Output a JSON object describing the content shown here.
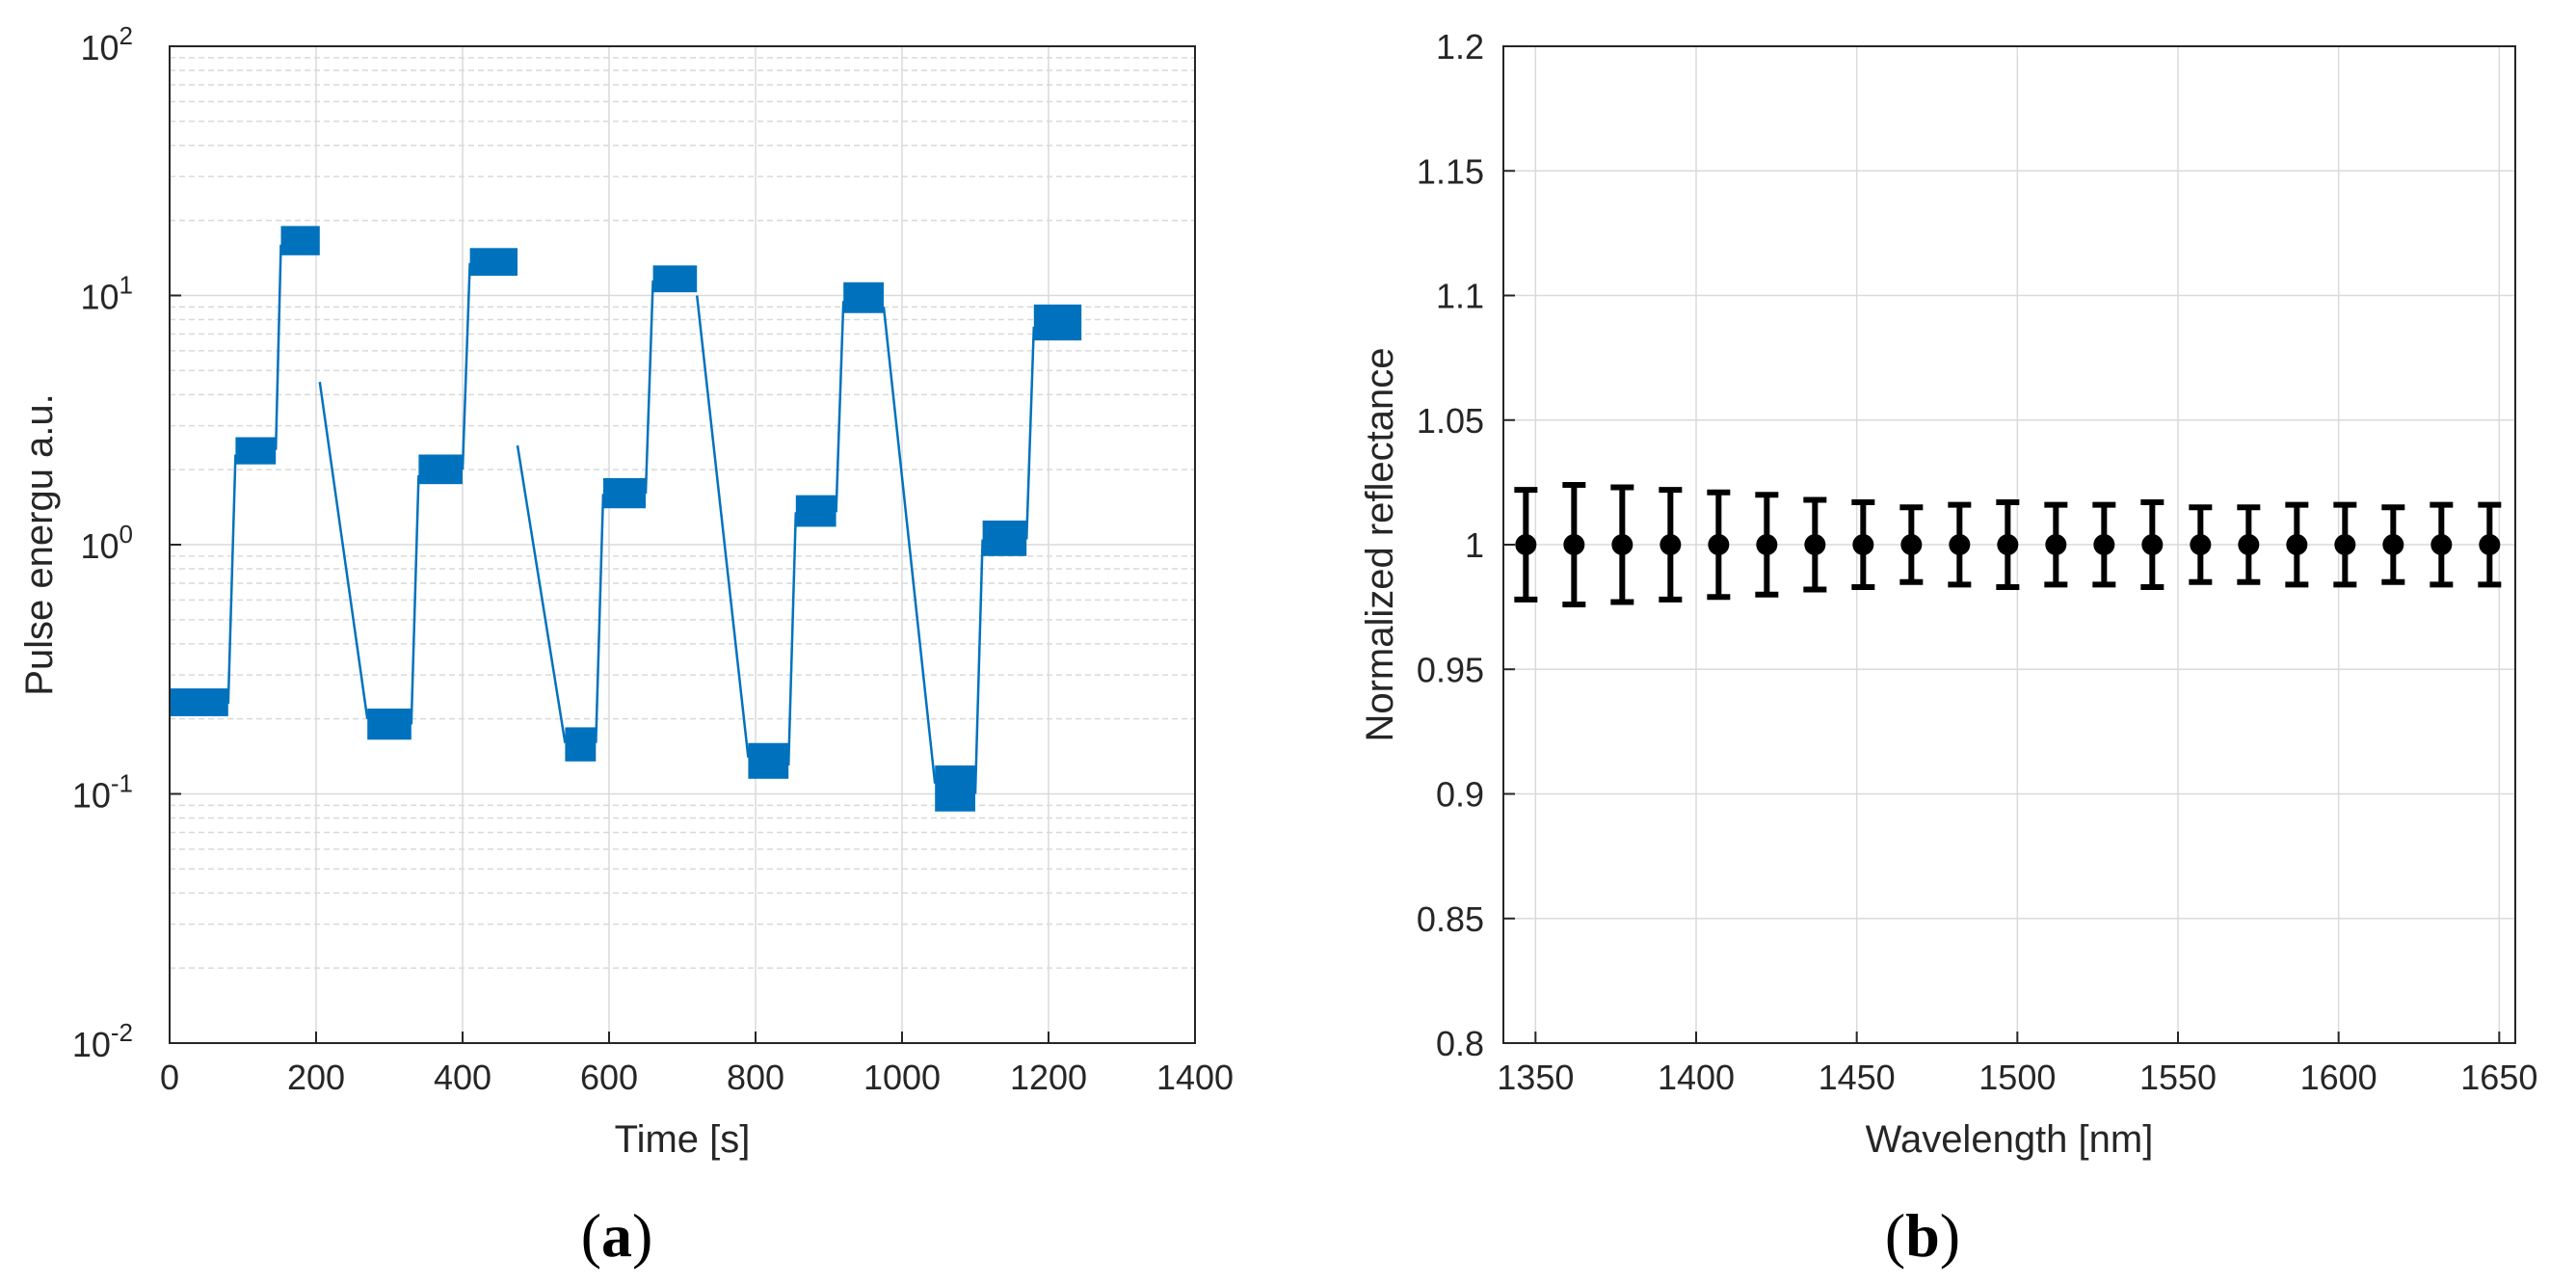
{
  "chart_data": [
    {
      "type": "line",
      "panel_label": "(a)",
      "panel_letter": "a",
      "xlabel": "Time [s]",
      "ylabel": "Pulse energu a.u.",
      "xlim": [
        0,
        1400
      ],
      "ylim": [
        0.01,
        100
      ],
      "yscale": "log",
      "grid": true,
      "xticks": [
        0,
        200,
        400,
        600,
        800,
        1000,
        1200,
        1400
      ],
      "xtick_labels": [
        "0",
        "200",
        "400",
        "600",
        "800",
        "1000",
        "1200",
        "1400"
      ],
      "ytick_labels": [
        {
          "base": "10",
          "exp": "-2"
        },
        {
          "base": "10",
          "exp": "-1"
        },
        {
          "base": "10",
          "exp": "0"
        },
        {
          "base": "10",
          "exp": "1"
        },
        {
          "base": "10",
          "exp": "2"
        }
      ],
      "color": "#0072BD",
      "segments": [
        {
          "kind": "plateau",
          "x0": 0,
          "x1": 80,
          "lo": 0.205,
          "hi": 0.265
        },
        {
          "kind": "ramp",
          "x0": 80,
          "x1": 90,
          "from": 0.23,
          "to": 2.3
        },
        {
          "kind": "plateau",
          "x0": 90,
          "x1": 145,
          "lo": 2.1,
          "hi": 2.7
        },
        {
          "kind": "ramp",
          "x0": 145,
          "x1": 152,
          "from": 2.4,
          "to": 16
        },
        {
          "kind": "plateau",
          "x0": 152,
          "x1": 205,
          "lo": 14.5,
          "hi": 19
        },
        {
          "kind": "ramp",
          "x0": 205,
          "x1": 270,
          "from": 4.5,
          "to": 0.2
        },
        {
          "kind": "plateau",
          "x0": 270,
          "x1": 330,
          "lo": 0.165,
          "hi": 0.22
        },
        {
          "kind": "ramp",
          "x0": 330,
          "x1": 340,
          "from": 0.19,
          "to": 1.9
        },
        {
          "kind": "plateau",
          "x0": 340,
          "x1": 400,
          "lo": 1.75,
          "hi": 2.3
        },
        {
          "kind": "ramp",
          "x0": 400,
          "x1": 410,
          "from": 2.0,
          "to": 13.5
        },
        {
          "kind": "plateau",
          "x0": 410,
          "x1": 475,
          "lo": 12,
          "hi": 15.5
        },
        {
          "kind": "ramp",
          "x0": 475,
          "x1": 540,
          "from": 2.5,
          "to": 0.16
        },
        {
          "kind": "plateau",
          "x0": 540,
          "x1": 582,
          "lo": 0.135,
          "hi": 0.185
        },
        {
          "kind": "ramp",
          "x0": 582,
          "x1": 592,
          "from": 0.16,
          "to": 1.6
        },
        {
          "kind": "plateau",
          "x0": 592,
          "x1": 650,
          "lo": 1.4,
          "hi": 1.85
        },
        {
          "kind": "ramp",
          "x0": 650,
          "x1": 660,
          "from": 1.6,
          "to": 11.5
        },
        {
          "kind": "plateau",
          "x0": 660,
          "x1": 720,
          "lo": 10.3,
          "hi": 13.2
        },
        {
          "kind": "ramp",
          "x0": 720,
          "x1": 790,
          "from": 10.0,
          "to": 0.14
        },
        {
          "kind": "plateau",
          "x0": 790,
          "x1": 845,
          "lo": 0.115,
          "hi": 0.16
        },
        {
          "kind": "ramp",
          "x0": 845,
          "x1": 855,
          "from": 0.13,
          "to": 1.35
        },
        {
          "kind": "plateau",
          "x0": 855,
          "x1": 910,
          "lo": 1.18,
          "hi": 1.58
        },
        {
          "kind": "ramp",
          "x0": 910,
          "x1": 920,
          "from": 1.35,
          "to": 9.5
        },
        {
          "kind": "plateau",
          "x0": 920,
          "x1": 975,
          "lo": 8.5,
          "hi": 11.3
        },
        {
          "kind": "ramp",
          "x0": 975,
          "x1": 1045,
          "from": 9.0,
          "to": 0.11
        },
        {
          "kind": "plateau",
          "x0": 1045,
          "x1": 1100,
          "lo": 0.085,
          "hi": 0.13
        },
        {
          "kind": "ramp",
          "x0": 1100,
          "x1": 1110,
          "from": 0.1,
          "to": 1.05
        },
        {
          "kind": "plateau",
          "x0": 1110,
          "x1": 1170,
          "lo": 0.9,
          "hi": 1.25
        },
        {
          "kind": "ramp",
          "x0": 1170,
          "x1": 1180,
          "from": 1.05,
          "to": 7.5
        },
        {
          "kind": "plateau",
          "x0": 1180,
          "x1": 1245,
          "lo": 6.6,
          "hi": 9.2
        }
      ]
    },
    {
      "type": "errorbar",
      "panel_label": "(b)",
      "panel_letter": "b",
      "xlabel": "Wavelength [nm]",
      "ylabel": "Normalized reflectance",
      "xlim": [
        1340,
        1655
      ],
      "ylim": [
        0.8,
        1.2
      ],
      "grid": true,
      "xticks": [
        1350,
        1400,
        1450,
        1500,
        1550,
        1600,
        1650
      ],
      "xtick_labels": [
        "1350",
        "1400",
        "1450",
        "1500",
        "1550",
        "1600",
        "1650"
      ],
      "yticks": [
        0.8,
        0.85,
        0.9,
        0.95,
        1.0,
        1.05,
        1.1,
        1.15,
        1.2
      ],
      "ytick_labels": [
        "0.8",
        "0.85",
        "0.9",
        "0.95",
        "1",
        "1.05",
        "1.1",
        "1.15",
        "1.2"
      ],
      "color": "#000000",
      "x": [
        1347,
        1362,
        1377,
        1392,
        1407,
        1422,
        1437,
        1452,
        1467,
        1482,
        1497,
        1512,
        1527,
        1542,
        1557,
        1572,
        1587,
        1602,
        1617,
        1632,
        1647
      ],
      "y": [
        1,
        1,
        1,
        1,
        1,
        1,
        1,
        1,
        1,
        1,
        1,
        1,
        1,
        1,
        1,
        1,
        1,
        1,
        1,
        1,
        1
      ],
      "err": [
        0.022,
        0.024,
        0.023,
        0.022,
        0.021,
        0.02,
        0.018,
        0.017,
        0.015,
        0.016,
        0.017,
        0.016,
        0.016,
        0.017,
        0.015,
        0.015,
        0.016,
        0.016,
        0.015,
        0.016,
        0.016
      ]
    }
  ]
}
